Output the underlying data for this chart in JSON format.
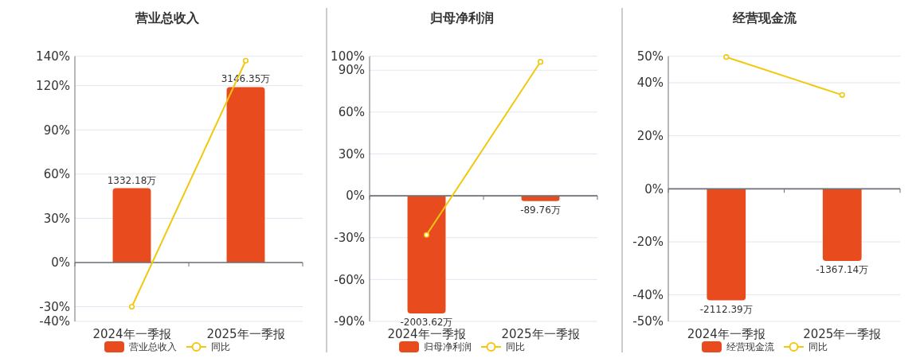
{
  "chart_data": [
    {
      "type": "bar",
      "title": "营业总收入",
      "categories": [
        "2024年一季报",
        "2025年一季报"
      ],
      "series": [
        {
          "name": "营业总收入",
          "color": "#e84c1e",
          "axis": "y2",
          "values": [
            1332.18,
            3146.35
          ],
          "value_labels": [
            "1332.18万",
            "3146.35万"
          ]
        },
        {
          "name": "同比",
          "type": "line",
          "color": "#f2c80f",
          "values": [
            -30,
            137
          ]
        }
      ],
      "ylim": [
        -40,
        140
      ],
      "yticks": [
        {
          "value": -40,
          "label": "-40%"
        },
        {
          "value": -30,
          "label": "-30%"
        },
        {
          "value": 0,
          "label": "0%"
        },
        {
          "value": 30,
          "label": "30%"
        },
        {
          "value": 60,
          "label": "60%"
        },
        {
          "value": 90,
          "label": "90%"
        },
        {
          "value": 120,
          "label": "120%"
        },
        {
          "value": 140,
          "label": "140%"
        }
      ],
      "y2lim": [
        -1057,
        3700
      ],
      "grid": "y",
      "legend": "bottom",
      "marker": "circle",
      "tick_labels": "xy"
    },
    {
      "type": "bar",
      "title": "归母净利润",
      "categories": [
        "2024年一季报",
        "2025年一季报"
      ],
      "series": [
        {
          "name": "归母净利润",
          "color": "#e84c1e",
          "axis": "y2",
          "values": [
            -2003.62,
            -89.76
          ],
          "value_labels": [
            "-2003.62万",
            "-89.76万"
          ]
        },
        {
          "name": "同比",
          "type": "line",
          "color": "#f2c80f",
          "values": [
            -28,
            96
          ]
        }
      ],
      "ylim": [
        -90,
        100
      ],
      "yticks": [
        {
          "value": -90,
          "label": "-90%"
        },
        {
          "value": -60,
          "label": "-60%"
        },
        {
          "value": -30,
          "label": "-30%"
        },
        {
          "value": 0,
          "label": "0%"
        },
        {
          "value": 30,
          "label": "30%"
        },
        {
          "value": 60,
          "label": "60%"
        },
        {
          "value": 90,
          "label": "90%"
        },
        {
          "value": 100,
          "label": "100%"
        }
      ],
      "y2lim": [
        -2140,
        2378
      ],
      "grid": "y",
      "legend": "bottom",
      "marker": "circle",
      "tick_labels": "xy"
    },
    {
      "type": "bar",
      "title": "经营现金流",
      "categories": [
        "2024年一季报",
        "2025年一季报"
      ],
      "series": [
        {
          "name": "经营现金流",
          "color": "#e84c1e",
          "axis": "y2",
          "values": [
            -2112.39,
            -1367.14
          ],
          "value_labels": [
            "-2112.39万",
            "-1367.14万"
          ]
        },
        {
          "name": "同比",
          "type": "line",
          "color": "#f2c80f",
          "values": [
            49.7,
            35.4
          ]
        }
      ],
      "ylim": [
        -50,
        50
      ],
      "yticks": [
        {
          "value": -50,
          "label": "-50%"
        },
        {
          "value": -40,
          "label": "-40%"
        },
        {
          "value": -20,
          "label": "-20%"
        },
        {
          "value": 0,
          "label": "0%"
        },
        {
          "value": 20,
          "label": "20%"
        },
        {
          "value": 40,
          "label": "40%"
        },
        {
          "value": 50,
          "label": "50%"
        }
      ],
      "y2lim": [
        -2510,
        2510
      ],
      "grid": "y",
      "legend": "bottom",
      "marker": "circle",
      "tick_labels": "xy"
    }
  ]
}
